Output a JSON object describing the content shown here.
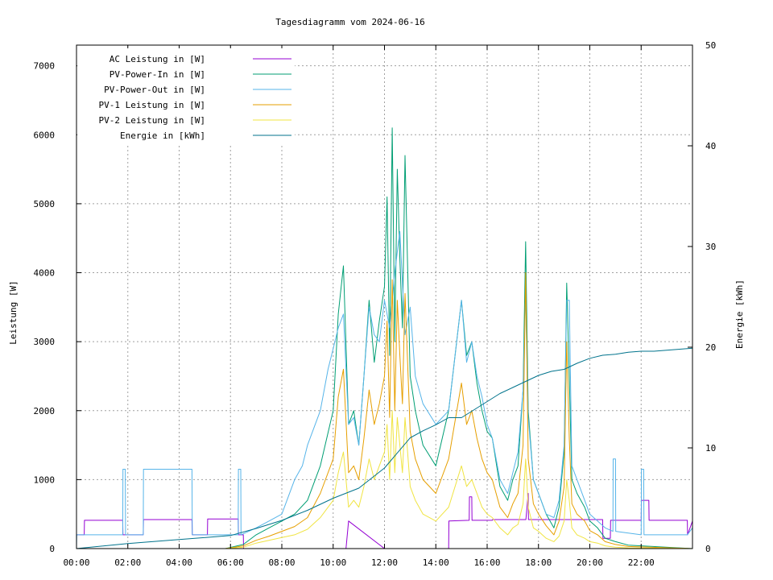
{
  "chart_data": {
    "type": "line",
    "title": "Tagesdiagramm vom 2024-06-16",
    "xlabel": "",
    "ylabel": "Leistung [W]",
    "y2label": "Energie [kWh]",
    "x_ticks": [
      "00:00",
      "02:00",
      "04:00",
      "06:00",
      "08:00",
      "10:00",
      "12:00",
      "14:00",
      "16:00",
      "18:00",
      "20:00",
      "22:00"
    ],
    "x_tick_hours": [
      0,
      2,
      4,
      6,
      8,
      10,
      12,
      14,
      16,
      18,
      20,
      22
    ],
    "xlim_hours": [
      0,
      24
    ],
    "ylim": [
      0,
      7300
    ],
    "y_ticks": [
      0,
      1000,
      2000,
      3000,
      4000,
      5000,
      6000,
      7000
    ],
    "y2lim": [
      0,
      50
    ],
    "y2_ticks": [
      0,
      10,
      20,
      30,
      40,
      50
    ],
    "grid": true,
    "legend_position": "top-left",
    "series": [
      {
        "name": "AC Leistung in [W]",
        "color": "#9400d3",
        "axis": "y1",
        "x": [
          0,
          0.3,
          0.31,
          1.8,
          1.81,
          2.6,
          2.61,
          4.5,
          4.51,
          5.1,
          5.11,
          6.3,
          6.31,
          6.5,
          6.51,
          10.5,
          10.6,
          12.0,
          14.5,
          14.51,
          15.3,
          15.31,
          15.4,
          15.41,
          16.2,
          16.21,
          16.3,
          16.31,
          17.0,
          17.5,
          17.51,
          17.6,
          17.61,
          19.0,
          19.01,
          19.2,
          19.21,
          20.0,
          20.01,
          20.5,
          20.51,
          20.8,
          20.81,
          22.0,
          22.01,
          22.3,
          22.31,
          23.8,
          23.81,
          24.0
        ],
        "y": [
          200,
          200,
          410,
          410,
          200,
          200,
          420,
          420,
          200,
          200,
          430,
          430,
          200,
          200,
          0,
          0,
          400,
          0,
          0,
          400,
          410,
          750,
          750,
          410,
          410,
          420,
          420,
          420,
          420,
          420,
          420,
          800,
          420,
          420,
          420,
          420,
          420,
          420,
          420,
          420,
          150,
          150,
          410,
          410,
          700,
          700,
          410,
          410,
          200,
          400
        ]
      },
      {
        "name": "PV-Power-In in [W]",
        "color": "#009e73",
        "axis": "y1",
        "x": [
          0,
          5.8,
          6.5,
          7.0,
          7.5,
          8.0,
          8.5,
          9.0,
          9.5,
          10.0,
          10.2,
          10.4,
          10.6,
          10.8,
          11.0,
          11.2,
          11.4,
          11.6,
          11.8,
          12.0,
          12.1,
          12.2,
          12.3,
          12.4,
          12.5,
          12.6,
          12.7,
          12.8,
          13.0,
          13.2,
          13.5,
          14.0,
          14.5,
          15.0,
          15.2,
          15.4,
          15.6,
          15.8,
          16.0,
          16.2,
          16.5,
          16.8,
          17.0,
          17.2,
          17.4,
          17.5,
          17.6,
          17.8,
          18.0,
          18.3,
          18.6,
          18.8,
          19.0,
          19.1,
          19.2,
          19.3,
          19.5,
          19.8,
          20.0,
          20.3,
          20.6,
          21.0,
          21.5,
          24.0
        ],
        "y": [
          0,
          0,
          60,
          200,
          300,
          400,
          500,
          700,
          1200,
          2000,
          3400,
          4100,
          1800,
          2000,
          1500,
          2500,
          3600,
          2700,
          3300,
          3800,
          5100,
          2800,
          6100,
          3000,
          5500,
          4200,
          3200,
          5700,
          2500,
          2000,
          1500,
          1200,
          2000,
          3600,
          2800,
          3000,
          2400,
          2000,
          1700,
          1600,
          900,
          700,
          1000,
          1200,
          2300,
          4450,
          2000,
          1000,
          800,
          500,
          300,
          600,
          1400,
          3850,
          2500,
          1000,
          800,
          600,
          400,
          300,
          150,
          100,
          50,
          0
        ]
      },
      {
        "name": "PV-Power-Out in [W]",
        "color": "#56b4e9",
        "axis": "y1",
        "x": [
          0,
          0.01,
          1.8,
          1.81,
          1.9,
          1.91,
          2.6,
          2.61,
          4.5,
          4.51,
          5.1,
          5.11,
          6.3,
          6.31,
          6.4,
          6.41,
          7.0,
          7.5,
          8.0,
          8.5,
          8.8,
          9.0,
          9.5,
          9.8,
          10.0,
          10.2,
          10.4,
          10.6,
          10.8,
          11.0,
          11.2,
          11.4,
          11.6,
          11.8,
          12.0,
          12.2,
          12.4,
          12.5,
          12.6,
          12.8,
          13.0,
          13.2,
          13.5,
          14.0,
          14.5,
          15.0,
          15.2,
          15.4,
          15.6,
          15.8,
          16.0,
          16.2,
          16.5,
          16.8,
          17.0,
          17.2,
          17.4,
          17.5,
          17.6,
          17.8,
          18.0,
          18.3,
          18.6,
          18.8,
          19.0,
          19.1,
          19.2,
          19.3,
          19.5,
          19.8,
          20.0,
          20.3,
          20.6,
          20.9,
          20.91,
          21.0,
          21.01,
          22.0,
          22.01,
          22.1,
          22.11,
          23.8,
          24.0
        ],
        "y": [
          0,
          200,
          200,
          1150,
          1150,
          200,
          200,
          1150,
          1150,
          200,
          200,
          200,
          200,
          1150,
          1150,
          200,
          300,
          400,
          500,
          1000,
          1200,
          1500,
          2000,
          2600,
          2900,
          3200,
          3400,
          1800,
          1900,
          1500,
          2500,
          3500,
          3100,
          3000,
          3600,
          3200,
          4000,
          4300,
          4600,
          3100,
          3500,
          2500,
          2100,
          1800,
          2000,
          3600,
          2700,
          3000,
          2500,
          2200,
          1800,
          1600,
          1000,
          800,
          1100,
          1400,
          2300,
          3700,
          1900,
          1000,
          800,
          500,
          450,
          700,
          1500,
          3600,
          3600,
          1200,
          1000,
          700,
          500,
          400,
          300,
          250,
          1300,
          1300,
          250,
          200,
          1150,
          1150,
          200,
          200,
          300
        ]
      },
      {
        "name": "PV-1 Leistung in [W]",
        "color": "#e69f00",
        "axis": "y1",
        "x": [
          0,
          5.8,
          6.5,
          7.0,
          7.5,
          8.0,
          8.5,
          9.0,
          9.5,
          10.0,
          10.2,
          10.4,
          10.6,
          10.8,
          11.0,
          11.2,
          11.4,
          11.6,
          11.8,
          12.0,
          12.1,
          12.2,
          12.3,
          12.4,
          12.5,
          12.6,
          12.7,
          12.8,
          13.0,
          13.2,
          13.5,
          14.0,
          14.5,
          15.0,
          15.2,
          15.4,
          15.6,
          15.8,
          16.0,
          16.2,
          16.5,
          16.8,
          17.0,
          17.2,
          17.4,
          17.5,
          17.6,
          17.8,
          18.0,
          18.3,
          18.6,
          18.8,
          19.0,
          19.1,
          19.2,
          19.3,
          19.5,
          19.8,
          20.0,
          20.3,
          20.6,
          21.0,
          21.5,
          24.0
        ],
        "y": [
          0,
          0,
          40,
          120,
          180,
          250,
          320,
          450,
          800,
          1300,
          2200,
          2600,
          1100,
          1200,
          1000,
          1600,
          2300,
          1800,
          2100,
          2500,
          3300,
          1900,
          3900,
          2000,
          3600,
          2800,
          2100,
          3700,
          1700,
          1300,
          1000,
          800,
          1300,
          2400,
          1800,
          2000,
          1600,
          1300,
          1100,
          1000,
          600,
          450,
          650,
          800,
          1500,
          4000,
          1300,
          650,
          500,
          330,
          200,
          400,
          900,
          3000,
          1600,
          650,
          500,
          400,
          260,
          200,
          100,
          60,
          30,
          0
        ]
      },
      {
        "name": "PV-2 Leistung in [W]",
        "color": "#f0e442",
        "axis": "y1",
        "x": [
          0,
          5.8,
          6.5,
          7.0,
          7.5,
          8.0,
          8.5,
          9.0,
          9.5,
          10.0,
          10.2,
          10.4,
          10.6,
          10.8,
          11.0,
          11.2,
          11.4,
          11.6,
          11.8,
          12.0,
          12.1,
          12.2,
          12.3,
          12.4,
          12.5,
          12.6,
          12.7,
          12.8,
          13.0,
          13.2,
          13.5,
          14.0,
          14.5,
          15.0,
          15.2,
          15.4,
          15.6,
          15.8,
          16.0,
          16.2,
          16.5,
          16.8,
          17.0,
          17.2,
          17.4,
          17.5,
          17.6,
          17.8,
          18.0,
          18.3,
          18.6,
          18.8,
          19.0,
          19.1,
          19.2,
          19.3,
          19.5,
          19.8,
          20.0,
          20.3,
          20.6,
          21.0,
          21.5,
          24.0
        ],
        "y": [
          0,
          0,
          20,
          80,
          120,
          160,
          200,
          280,
          450,
          700,
          1100,
          1400,
          600,
          700,
          600,
          900,
          1300,
          1000,
          1200,
          1400,
          1800,
          1000,
          2000,
          1100,
          1900,
          1500,
          1100,
          1900,
          900,
          700,
          500,
          400,
          600,
          1200,
          900,
          1000,
          800,
          600,
          500,
          450,
          300,
          200,
          300,
          350,
          650,
          1300,
          600,
          300,
          250,
          150,
          100,
          180,
          400,
          1000,
          700,
          300,
          200,
          150,
          100,
          80,
          40,
          20,
          10,
          0
        ]
      },
      {
        "name": "Energie in [kWh]",
        "color": "#00738c",
        "axis": "y2",
        "x": [
          0,
          2,
          4,
          6,
          7,
          8,
          9,
          10,
          11,
          12,
          12.5,
          13,
          13.5,
          14,
          14.5,
          15,
          15.5,
          16,
          16.5,
          17,
          17.5,
          18,
          18.5,
          19,
          19.5,
          20,
          20.5,
          21,
          21.5,
          22,
          22.5,
          23,
          23.5,
          24
        ],
        "y": [
          0.0,
          0.5,
          0.9,
          1.3,
          2.0,
          2.8,
          3.8,
          5.0,
          6.0,
          8.0,
          9.5,
          11.0,
          11.7,
          12.3,
          13.0,
          13.0,
          13.8,
          14.6,
          15.4,
          16.0,
          16.6,
          17.2,
          17.6,
          17.8,
          18.4,
          18.9,
          19.2,
          19.3,
          19.5,
          19.6,
          19.6,
          19.7,
          19.8,
          19.9
        ]
      }
    ]
  }
}
